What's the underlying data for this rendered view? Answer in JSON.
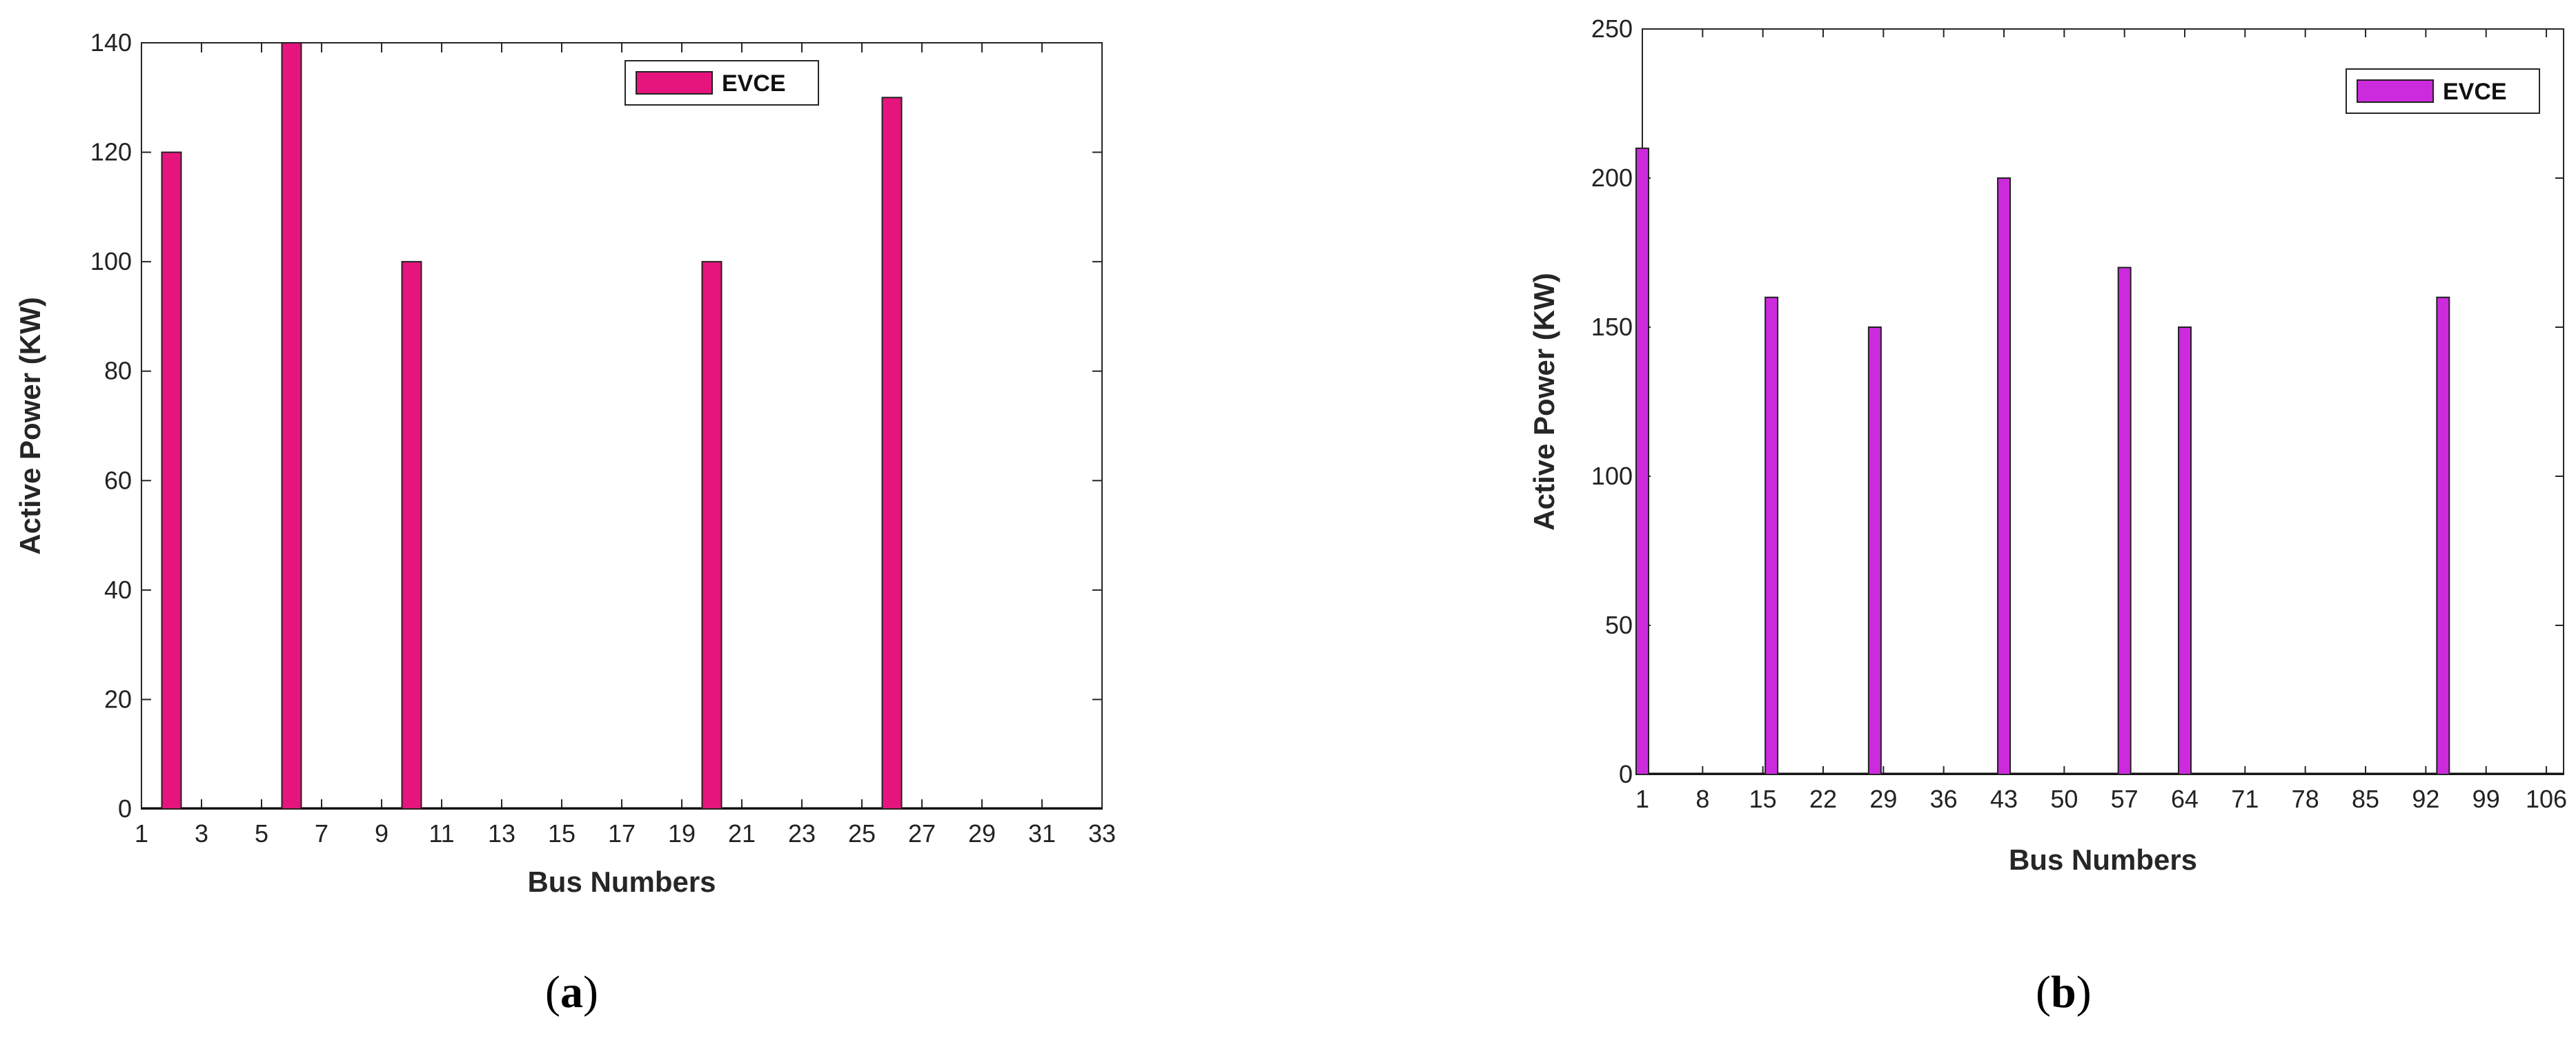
{
  "chart_data": [
    {
      "type": "bar",
      "caption": "(a)",
      "xlabel": "Bus Numbers",
      "ylabel": "Active Power (KW)",
      "legend": {
        "label": "EVCE",
        "position": "top-right"
      },
      "color": "#E6157D",
      "xlim": [
        1,
        33
      ],
      "ylim": [
        0,
        140
      ],
      "xticks": [
        1,
        3,
        5,
        7,
        9,
        11,
        13,
        15,
        17,
        19,
        21,
        23,
        25,
        27,
        29,
        31,
        33
      ],
      "yticks": [
        0,
        20,
        40,
        60,
        80,
        100,
        120,
        140
      ],
      "x": [
        2,
        6,
        10,
        20,
        26
      ],
      "values": [
        120,
        140,
        100,
        100,
        130
      ],
      "grid": false
    },
    {
      "type": "bar",
      "caption": "(b)",
      "xlabel": "Bus Numbers",
      "ylabel": "Active Power (KW)",
      "legend": {
        "label": "EVCE",
        "position": "top-right"
      },
      "color": "#CC2BDD",
      "xlim": [
        1,
        108
      ],
      "ylim": [
        0,
        250
      ],
      "xticks": [
        1,
        8,
        15,
        22,
        29,
        36,
        43,
        50,
        57,
        64,
        71,
        78,
        85,
        92,
        99,
        106
      ],
      "yticks": [
        0,
        50,
        100,
        150,
        200,
        250
      ],
      "x": [
        1,
        16,
        28,
        43,
        57,
        64,
        94
      ],
      "values": [
        210,
        160,
        150,
        200,
        170,
        150,
        160
      ],
      "grid": false
    }
  ]
}
